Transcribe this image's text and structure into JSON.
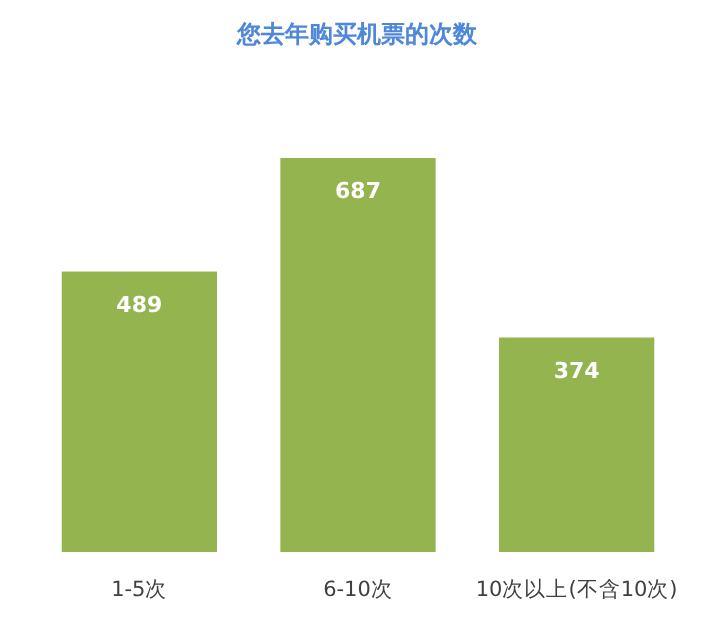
{
  "chart_data": {
    "type": "bar",
    "title": "您去年购买机票的次数",
    "categories": [
      "1-5次",
      "6-10次",
      "10次以上(不含10次)"
    ],
    "values": [
      489,
      687,
      374
    ],
    "color": "#93b44f",
    "data_labels": true
  }
}
